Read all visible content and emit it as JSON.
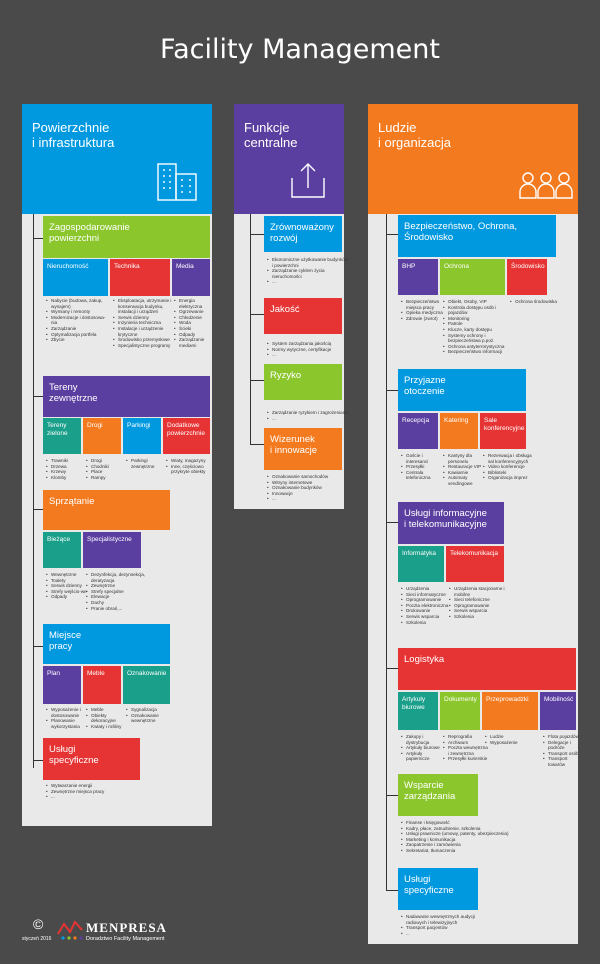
{
  "page": {
    "title": "Facility Management"
  },
  "colors": {
    "blue": "#0099e0",
    "purple": "#5b3fa0",
    "green": "#8cc62d",
    "red": "#e63434",
    "orange": "#f47a1f",
    "teal": "#1a9f8a"
  },
  "col1": {
    "header": "Powierzchnie\ni infrastruktura",
    "zag": {
      "title": "Zagospodarowanie\npowierzchni",
      "subs": [
        "Nieruchomość",
        "Technika",
        "Media"
      ],
      "lists": [
        [
          "Nabycie (budowa, zakup, wynajem)",
          "Wymiany i remonty",
          "Modernizacje i dostosowa-nia",
          "Zarządzanie",
          "Optymalizacja portfela",
          "Zbycie"
        ],
        [
          "Eksploatacja, utrzymanie i konserwacja budynku, instalacji i urządzeń",
          "Serwis dzienny",
          "Inżynieria techniczna",
          "Instalacje i urządzenie krytyczne",
          "Środowisko przemysłowe",
          "Specjalistyczne programy"
        ],
        [
          "Energia elektryczna",
          "Ogrzewanie",
          "Chłodzenie",
          "Woda",
          "Ścieki",
          "Odpady",
          "Zarządzanie mediami"
        ]
      ]
    },
    "ter": {
      "title": "Tereny\nzewnętrzne",
      "subs": [
        "Tereny\nzielone",
        "Drogi",
        "Parkingi",
        "Dodatkowe\npowierzchnie"
      ],
      "lists": [
        [
          "Trawniki",
          "Drzewa",
          "Krzewy",
          "Klomby"
        ],
        [
          "Drogi",
          "Chodniki",
          "Place",
          "Rampy"
        ],
        [
          "Parkingi zewnętrzne"
        ],
        [
          "Wiaty, magazyny",
          "Inne, częściowo przykryte obiekty"
        ]
      ]
    },
    "spr": {
      "title": "Sprzątanie",
      "subs": [
        "Bieżące",
        "Specjalistyczne"
      ],
      "lists": [
        [
          "Wewnętrzne",
          "Toalety",
          "Serwis dzienny",
          "Strefy wejścio-we",
          "Odpady"
        ],
        [
          "Dezynfekcja, dezynsekcja, deratyzacja",
          "Zewnętrzne",
          "Strefy specjalne",
          "Elewacje",
          "Dachy",
          "Pranie obrań,..."
        ]
      ]
    },
    "mp": {
      "title": "Miejsce\npracy",
      "subs": [
        "Plan",
        "Meble",
        "Oznakowanie"
      ],
      "lists": [
        [
          "Wyposażenie i dostosowanie",
          "Planowanie wykorzystania"
        ],
        [
          "Meble",
          "Obiekty dekoracyjne",
          "Kwiaty i rośliny"
        ],
        [
          "Sygnalizacja",
          "Oznakowanie wewnętrzne"
        ]
      ]
    },
    "usl": {
      "title": "Usługi\nspecyficzne",
      "list": [
        "Wytwarzanie energii",
        "Zewnętrzne miejsca pracy",
        "..."
      ]
    }
  },
  "col2": {
    "header": "Funkcje\ncentralne",
    "items": [
      {
        "title": "Zrównoważony\nrozwój",
        "list": [
          "Ekonomiczne użytkowanie budynków i powierzchni",
          "Zarządzanie cyklem życia nieruchomości",
          "..."
        ]
      },
      {
        "title": "Jakość",
        "list": [
          "System zarządzania jakością",
          "Normy wytyczne, certyfikacje",
          "..."
        ]
      },
      {
        "title": "Ryzyko",
        "list": [
          "Zarządzanie ryzykiem i zagrożeniami",
          "..."
        ]
      },
      {
        "title": "Wizerunek\ni innowacje",
        "list": [
          "Oznakowanie samochodów",
          "Witryny internetowe",
          "Oznakowanie budynków",
          "Innowacje",
          "..."
        ]
      }
    ]
  },
  "col3": {
    "header": "Ludzie\ni organizacja",
    "bez": {
      "title": "Bezpieczeństwo, Ochrona,\nŚrodowisko",
      "subs": [
        "BHP",
        "Ochrona",
        "Środowisko"
      ],
      "lists": [
        [
          "Bezpieczeństwo miejsca pracy",
          "Opieka medyczna",
          "Zdrowie (zwrot)"
        ],
        [
          "Obiekt, Osoby, VIP",
          "Kontrola dostępu osób i pojazdów",
          "Monitoring",
          "Patrole",
          "Klucze, karty dostępu",
          "Systemy ochrony i bezpieczeństwa p.poż.",
          "Ochrona antyterrorystyczna",
          "Bezpieczeństwo informacji"
        ],
        [
          "Ochrona środowiska"
        ]
      ]
    },
    "prz": {
      "title": "Przyjazne\notoczenie",
      "subs": [
        "Recepcja",
        "Katering",
        "Sale\nkonferencyjne"
      ],
      "lists": [
        [
          "Goście i interesanci",
          "Przesyłki",
          "Centrala telefoniczna"
        ],
        [
          "Kantyny dla personelu",
          "Restauracje VIP",
          "Kawiarnie",
          "Automaty vendingowe"
        ],
        [
          "Rezerwacja i obsługa sal konferencyjnych",
          "Video konferencje",
          "Biblioteki",
          "Organizacja imprez"
        ]
      ]
    },
    "inf": {
      "title": "Usługi informacyjne\ni telekomunikacyjne",
      "subs": [
        "Informatyka",
        "Telekomunikacja"
      ],
      "lists": [
        [
          "Urządzenia",
          "Sieci informatyczne",
          "Oprogramowanie",
          "Poczta elektroniczna",
          "Drukowanie",
          "Serwis wsparcia",
          "Szkolenia"
        ],
        [
          "Urządzenia stacjonarne i mobilne",
          "Sieci telefoniczne",
          "Oprogramowanie",
          "Serwis wsparcia",
          "Szkolenia"
        ]
      ]
    },
    "log": {
      "title": "Logistyka",
      "subs": [
        "Artykuły\nbiurowe",
        "Dokumenty",
        "Przeprowadzki",
        "Mobilność"
      ],
      "lists": [
        [
          "Zakupy i dystrybucja",
          "Artykuły biurowe",
          "Artykuły papiernicze"
        ],
        [
          "Reprografia",
          "Archiwum",
          "Poczta wewnętrzna i zewnętrzna",
          "Przesyłki kurierskie"
        ],
        [
          "Ludzie",
          "Wyposażenie"
        ],
        [
          "Flota pojazdów",
          "Delegacje i podróże",
          "Transport osób",
          "Transport towarów"
        ]
      ]
    },
    "wsp": {
      "title": "Wsparcie\nzarządzania",
      "list": [
        "Finanse i księgowość",
        "Kadry, płace, zatrudnienie, szkolenia",
        "Usługi prawnicze (umowy, patenty, ubezpieczenia)",
        "Marketing i komunikacja",
        "Zaopatrzenie i zamówienia",
        "Sekretariat, tłumaczenia"
      ]
    },
    "usl": {
      "title": "Usługi\nspecyficzne",
      "list": [
        "Nadawanie wewnętrznych audycji radiowych i telewizyjnych",
        "Transport pacjentów",
        "..."
      ]
    }
  },
  "footer": {
    "copyright": "©",
    "date": "styczeń 2016",
    "brand": "MENPRESA",
    "tagline": "Doradztwo Facility Management"
  }
}
